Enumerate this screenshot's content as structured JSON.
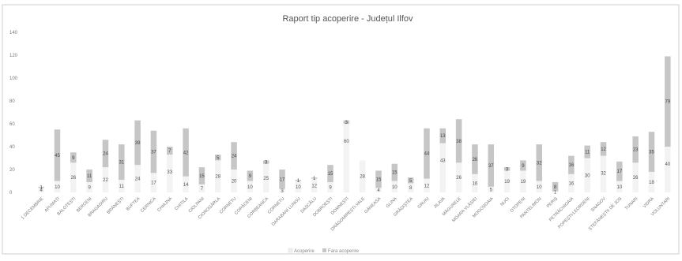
{
  "chart_data": {
    "type": "bar",
    "stacked": true,
    "title": "Raport tip acoperire - Județul Ilfov",
    "xlabel": "",
    "ylabel": "",
    "ylim": [
      0,
      140
    ],
    "yticks": [
      0,
      20,
      40,
      60,
      80,
      100,
      120,
      140
    ],
    "grid": false,
    "legend": "bottom",
    "colors": {
      "acoperire": "#f3f3f3",
      "fara_acoperire": "#c6c6c6",
      "title": "#555555",
      "text": "#666666"
    },
    "categories": [
      "1 DECEMBRIE",
      "AFUMAȚI",
      "BALOTEȘTI",
      "BERCENI",
      "BRAGADIRU",
      "BRĂNEȘTI",
      "BUFTEA",
      "CERNICA",
      "CHIAJNA",
      "CHITILA",
      "CIOLPANI",
      "CIOROGÂRLA",
      "CORNETU",
      "COPĂCENI",
      "CORBEANCA",
      "CORNETU",
      "DARABANI LUNGU",
      "DASCĂLU",
      "DOBROEȘTI",
      "DOMNEȘTI",
      "DRĂGOMIREȘTI-VALE",
      "GĂNEASA",
      "GLINA",
      "GRĂDIȘTEA",
      "GRUIU",
      "JILAVA",
      "MĂGURELE",
      "MOARA VLĂSIEI",
      "MOGOȘOAIA",
      "NUCI",
      "OTOPENI",
      "PANTELIMON",
      "PERIȘ",
      "PETRĂCHIOAIA",
      "POPEȘTI-LEORDENI",
      "SNAGOV",
      "ȘTEFĂNEȘTII DE JOS",
      "TUNARI",
      "VIDRA",
      "VOLUNTARI"
    ],
    "series": [
      {
        "name": "Acoperire",
        "values": [
          4,
          10,
          26,
          9,
          22,
          11,
          24,
          17,
          33,
          14,
          7,
          28,
          20,
          10,
          25,
          3,
          10,
          12,
          9,
          60,
          28,
          4,
          10,
          8,
          12,
          43,
          26,
          16,
          5,
          19,
          19,
          10,
          1,
          16,
          30,
          32,
          10,
          26,
          18,
          40
        ]
      },
      {
        "name": "Fara acoperire",
        "values": [
          1,
          45,
          9,
          11,
          24,
          31,
          39,
          37,
          7,
          42,
          15,
          5,
          24,
          9,
          3,
          17,
          1,
          1,
          15,
          3,
          0,
          15,
          15,
          5,
          44,
          13,
          38,
          26,
          37,
          3,
          9,
          32,
          8,
          16,
          11,
          12,
          17,
          23,
          35,
          79
        ]
      }
    ]
  }
}
